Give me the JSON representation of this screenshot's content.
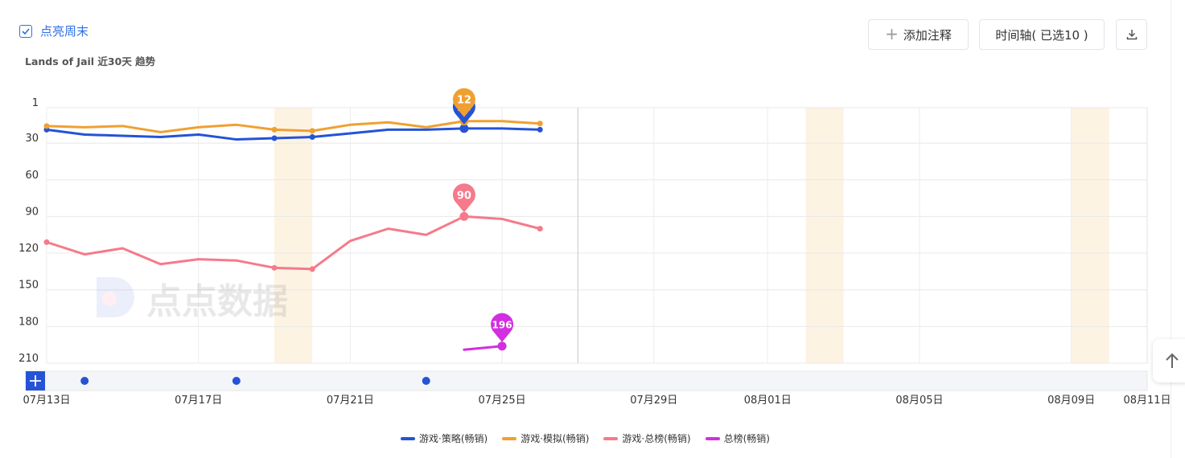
{
  "header": {
    "weekend_toggle_label": "点亮周末",
    "subtitle": "Lands of Jail 近30天 趋势"
  },
  "toolbar": {
    "add_annotation_label": "添加注释",
    "timeline_label": "时间轴( 已选10 )",
    "download_icon": "download-icon"
  },
  "watermark_text": "点点数据",
  "colors": {
    "accent": "#2f6fe4",
    "weekend_band": "#fdf3e3",
    "strategy": "#2453d6",
    "simulation": "#f0a030",
    "overall_games": "#f57a8a",
    "overall": "#d12fe0"
  },
  "chart_data": {
    "type": "line",
    "title": "",
    "y_axis": {
      "ticks": [
        1,
        30,
        60,
        90,
        120,
        150,
        180,
        210
      ],
      "inverted": true,
      "ylim": [
        1,
        210
      ]
    },
    "x_axis": {
      "tick_labels": [
        "07月13日",
        "07月17日",
        "07月21日",
        "07月25日",
        "07月29日",
        "08月01日",
        "08月05日",
        "08月09日",
        "08月11日"
      ],
      "tick_dates": [
        "07-13",
        "07-17",
        "07-21",
        "07-25",
        "07-29",
        "08-01",
        "08-05",
        "08-09",
        "08-11"
      ],
      "range": [
        "07-13",
        "08-11"
      ]
    },
    "weekend_bands": [
      [
        "07-19",
        "07-20"
      ],
      [
        "08-02",
        "08-03"
      ],
      [
        "08-09",
        "08-10"
      ]
    ],
    "x": [
      "07-13",
      "07-14",
      "07-15",
      "07-16",
      "07-17",
      "07-18",
      "07-19",
      "07-20",
      "07-21",
      "07-22",
      "07-23",
      "07-24",
      "07-25",
      "07-26"
    ],
    "series": [
      {
        "name": "游戏·策略(畅销)",
        "color": "#2453d6",
        "values": [
          19,
          23,
          24,
          25,
          23,
          27,
          26,
          25,
          22,
          19,
          19,
          18,
          18,
          19
        ]
      },
      {
        "name": "游戏·模拟(畅销)",
        "color": "#f0a030",
        "values": [
          16,
          17,
          16,
          21,
          17,
          15,
          19,
          20,
          15,
          13,
          17,
          12,
          12,
          14
        ]
      },
      {
        "name": "游戏·总榜(畅销)",
        "color": "#f57a8a",
        "values": [
          111,
          121,
          116,
          129,
          125,
          126,
          132,
          133,
          110,
          100,
          105,
          90,
          92,
          100
        ]
      },
      {
        "name": "总榜(畅销)",
        "color": "#d12fe0",
        "values": [
          null,
          null,
          null,
          null,
          null,
          null,
          null,
          null,
          null,
          null,
          null,
          199,
          196,
          null
        ]
      }
    ],
    "highlight_index": 11,
    "pin_labels": [
      {
        "series": 0,
        "index": 11,
        "label": "18"
      },
      {
        "series": 1,
        "index": 11,
        "label": "12"
      },
      {
        "series": 2,
        "index": 11,
        "label": "90"
      },
      {
        "series": 3,
        "index": 12,
        "label": "196"
      }
    ],
    "marked_points": [
      {
        "series": 0,
        "indices": [
          0,
          6,
          7,
          11,
          13
        ]
      },
      {
        "series": 1,
        "indices": [
          0,
          6,
          7,
          11,
          13
        ]
      },
      {
        "series": 2,
        "indices": [
          0,
          6,
          7,
          11,
          13
        ]
      },
      {
        "series": 3,
        "indices": [
          12
        ]
      }
    ],
    "annotation_dates": [
      "07-14",
      "07-18",
      "07-23"
    ],
    "legend_position": "bottom"
  }
}
